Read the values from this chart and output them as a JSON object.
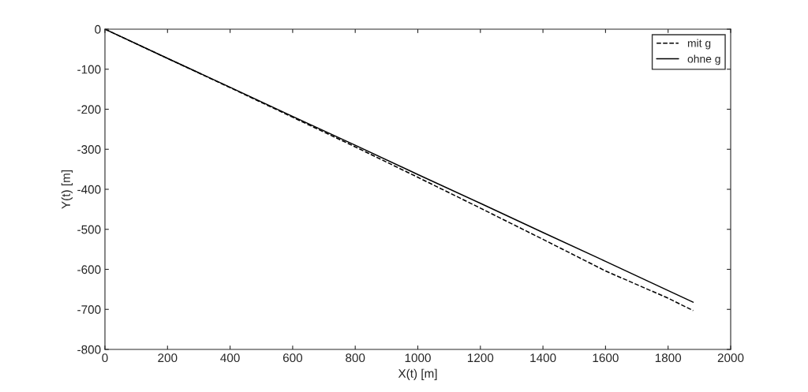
{
  "chart_data": {
    "type": "line",
    "xlabel": "X(t) [m]",
    "ylabel": "Y(t) [m]",
    "x": [
      0,
      200,
      400,
      600,
      800,
      1000,
      1200,
      1400,
      1600,
      1800,
      1880
    ],
    "series": [
      {
        "name": "mit g",
        "color": "#000000",
        "line_style": "dashed",
        "values": [
          0,
          -73,
          -146,
          -220,
          -294,
          -370,
          -447,
          -525,
          -604,
          -672,
          -703
        ]
      },
      {
        "name": "ohne g",
        "color": "#000000",
        "line_style": "solid",
        "values": [
          0,
          -73,
          -145,
          -218,
          -290,
          -363,
          -435,
          -508,
          -580,
          -653,
          -682
        ]
      }
    ],
    "xlim": [
      0,
      2000
    ],
    "xticks": [
      0,
      200,
      400,
      600,
      800,
      1000,
      1200,
      1400,
      1600,
      1800,
      2000
    ],
    "ylim": [
      -800,
      0
    ],
    "yticks": [
      -800,
      -700,
      -600,
      -500,
      -400,
      -300,
      -200,
      -100,
      0
    ],
    "grid": false,
    "legend": "top right",
    "marker": "none"
  }
}
